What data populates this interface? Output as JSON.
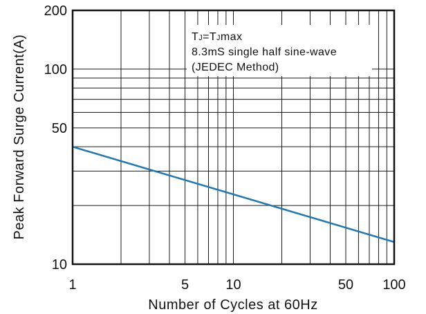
{
  "chart_data": {
    "type": "line",
    "xlabel": "Number of Cycles at 60Hz",
    "ylabel": "Peak Forward Surge Current(A)",
    "x_scale": "log",
    "y_scale": "log",
    "xlim": [
      1,
      100
    ],
    "ylim": [
      10,
      200
    ],
    "x_tick_labels": [
      "1",
      "5",
      "10",
      "50",
      "100"
    ],
    "y_tick_labels": [
      "10",
      "50",
      "100",
      "200"
    ],
    "grid": true,
    "annotation": {
      "line1": {
        "t1": "T",
        "s1": "J",
        "eq": "=T",
        "s2": "J",
        "rest": "max"
      },
      "line2": "8.3mS single half sine-wave",
      "line3": "(JEDEC Method)"
    },
    "series": [
      {
        "x": [
          1,
          100
        ],
        "y": [
          40,
          13
        ],
        "color": "#1f78b4"
      }
    ]
  }
}
